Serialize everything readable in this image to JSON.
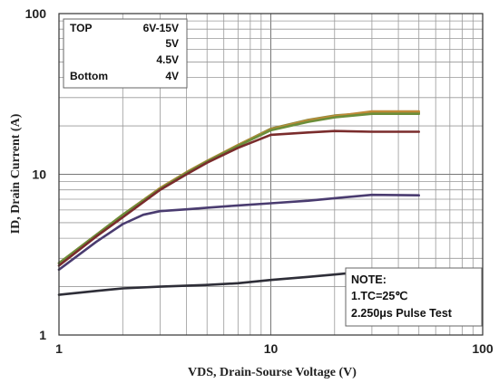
{
  "chart_data": {
    "type": "line",
    "xscale": "log",
    "yscale": "log",
    "xlim": [
      1,
      100
    ],
    "ylim": [
      1,
      100
    ],
    "xticks": [
      "1",
      "10",
      "100"
    ],
    "yticks": [
      "1",
      "10",
      "100"
    ],
    "xlabel": "VDS, Drain-Sourse Voltage (V)",
    "ylabel": "ID, Drain Current (A)",
    "grid": true,
    "legend": {
      "placement": "top-left",
      "rows": [
        {
          "label": "TOP",
          "value": "6V-15V"
        },
        {
          "label": "",
          "value": "5V"
        },
        {
          "label": "",
          "value": "4.5V"
        },
        {
          "label": "Bottom",
          "value": "4V"
        }
      ]
    },
    "note": [
      "NOTE:",
      "1.TC=25℃",
      "2.250μs Pulse Test"
    ],
    "series": [
      {
        "color": "#8a8a3c",
        "x": [
          1,
          1.5,
          2,
          3,
          4,
          5,
          7,
          10,
          15,
          20,
          30,
          50
        ],
        "y": [
          2.8,
          4.2,
          5.6,
          8.2,
          10.3,
          12.1,
          15.2,
          19.2,
          21.8,
          23.2,
          24.2,
          24.2
        ]
      },
      {
        "color": "#c08a38",
        "x": [
          1,
          1.5,
          2,
          3,
          4,
          5,
          7,
          10,
          15,
          20,
          30,
          50
        ],
        "y": [
          2.8,
          4.2,
          5.6,
          8.2,
          10.3,
          12.1,
          15.2,
          19.0,
          21.6,
          23.0,
          24.6,
          24.6
        ]
      },
      {
        "color": "#6b8e3a",
        "x": [
          1,
          1.5,
          2,
          3,
          4,
          5,
          7,
          10,
          15,
          20,
          30,
          50
        ],
        "y": [
          2.8,
          4.2,
          5.6,
          8.1,
          10.2,
          12.0,
          15.0,
          18.8,
          21.2,
          22.6,
          23.8,
          23.8
        ]
      },
      {
        "color": "#7a2c2c",
        "x": [
          1,
          1.5,
          2,
          3,
          4,
          5,
          7,
          10,
          15,
          20,
          30,
          50
        ],
        "y": [
          2.7,
          4.1,
          5.4,
          8.0,
          10.0,
          11.8,
          14.6,
          17.6,
          18.2,
          18.6,
          18.4,
          18.4
        ]
      },
      {
        "color": "#4a3c70",
        "x": [
          1,
          1.5,
          2,
          2.5,
          3,
          4,
          5,
          7,
          10,
          15,
          20,
          30,
          50
        ],
        "y": [
          2.55,
          3.8,
          4.9,
          5.6,
          5.9,
          6.05,
          6.2,
          6.4,
          6.6,
          6.85,
          7.1,
          7.45,
          7.4
        ]
      },
      {
        "color": "#2e2e38",
        "x": [
          1,
          1.5,
          2,
          3,
          5,
          7,
          10,
          15,
          20,
          30,
          50
        ],
        "y": [
          1.78,
          1.88,
          1.95,
          2.0,
          2.05,
          2.1,
          2.2,
          2.3,
          2.38,
          2.5,
          2.55
        ]
      }
    ]
  }
}
